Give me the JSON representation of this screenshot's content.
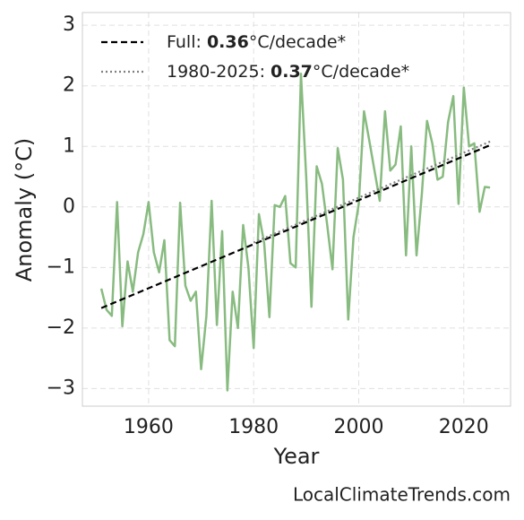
{
  "chart_data": {
    "type": "line",
    "x_label": "Year",
    "y_label": "Anomaly (°C)",
    "footer": "LocalClimateTrends.com",
    "x": [
      1951,
      1952,
      1953,
      1954,
      1955,
      1956,
      1957,
      1958,
      1959,
      1960,
      1961,
      1962,
      1963,
      1964,
      1965,
      1966,
      1967,
      1968,
      1969,
      1970,
      1971,
      1972,
      1973,
      1974,
      1975,
      1976,
      1977,
      1978,
      1979,
      1980,
      1981,
      1982,
      1983,
      1984,
      1985,
      1986,
      1987,
      1988,
      1989,
      1990,
      1991,
      1992,
      1993,
      1994,
      1995,
      1996,
      1997,
      1998,
      1999,
      2000,
      2001,
      2002,
      2003,
      2004,
      2005,
      2006,
      2007,
      2008,
      2009,
      2010,
      2011,
      2012,
      2013,
      2014,
      2015,
      2016,
      2017,
      2018,
      2019,
      2020,
      2021,
      2022,
      2023,
      2024,
      2025
    ],
    "series": [
      {
        "color": "#88bb80",
        "values": [
          -1.35,
          -1.7,
          -1.8,
          0.08,
          -1.97,
          -0.9,
          -1.4,
          -0.75,
          -0.45,
          0.08,
          -0.75,
          -1.08,
          -0.55,
          -2.2,
          -2.3,
          0.07,
          -1.3,
          -1.55,
          -1.4,
          -2.68,
          -1.8,
          0.1,
          -1.95,
          -0.4,
          -3.03,
          -1.4,
          -2.0,
          -0.3,
          -1.0,
          -2.33,
          -0.12,
          -0.6,
          -1.82,
          0.03,
          0.0,
          0.18,
          -0.93,
          -1.0,
          2.2,
          0.5,
          -1.65,
          0.67,
          0.38,
          -0.3,
          -1.03,
          0.97,
          0.45,
          -1.86,
          -0.5,
          0.05,
          1.58,
          1.1,
          0.6,
          0.1,
          1.58,
          0.6,
          0.7,
          1.33,
          -0.8,
          1.0,
          -0.8,
          0.2,
          1.42,
          1.05,
          0.45,
          0.5,
          1.4,
          1.83,
          0.05,
          1.97,
          1.0,
          1.05,
          -0.08,
          0.33,
          0.32
        ]
      }
    ],
    "trends": [
      {
        "label": [
          "Full: ",
          "0.36",
          "°C/decade*"
        ],
        "color": "#000000",
        "dash": "dashed",
        "x": [
          1951,
          2025
        ],
        "values": [
          -1.67,
          1.02
        ]
      },
      {
        "label": [
          "1980-2025: ",
          "0.37",
          "°C/decade*"
        ],
        "color": "#808080",
        "dash": "dotted",
        "x": [
          1980,
          2025
        ],
        "values": [
          -0.59,
          1.08
        ]
      }
    ],
    "xlim": [
      1947.4,
      2028.9
    ],
    "ylim": [
      -3.29,
      3.21
    ],
    "xticks": [
      1960,
      1980,
      2000,
      2020
    ],
    "yticks": [
      {
        "value": -3,
        "label": "−3"
      },
      {
        "value": -2,
        "label": "−2"
      },
      {
        "value": -1,
        "label": "−1"
      },
      0,
      1,
      2,
      3
    ],
    "grid": true,
    "legend": "upper left"
  }
}
